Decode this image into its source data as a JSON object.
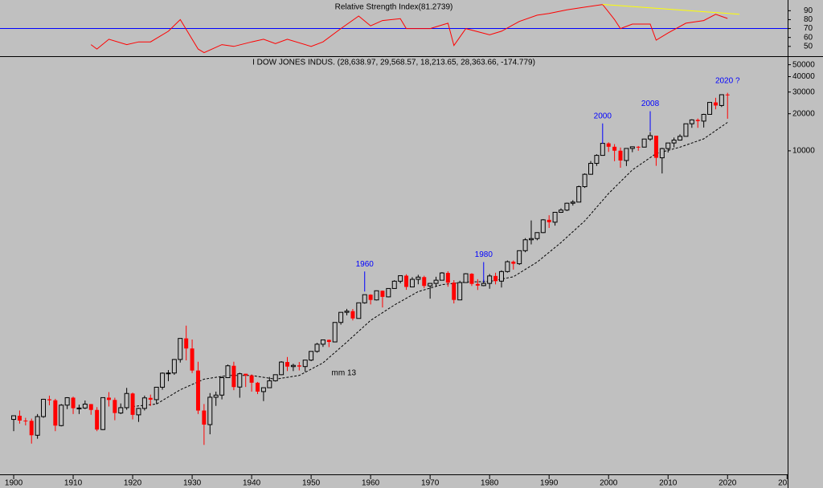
{
  "chart_data": [
    {
      "type": "line",
      "title": "Relative Strength Index(81.2739)",
      "xlim": [
        1897.7,
        2030.1
      ],
      "ylim": [
        39,
        102
      ],
      "yticks": [
        90,
        80,
        70,
        60,
        50
      ],
      "x": [
        1913,
        1914,
        1916,
        1919,
        1921,
        1923,
        1926,
        1928,
        1931,
        1932,
        1935,
        1937,
        1940,
        1942,
        1944,
        1946,
        1950,
        1952,
        1955,
        1958,
        1960,
        1962,
        1965,
        1966,
        1970,
        1973,
        1974,
        1976,
        1980,
        1982,
        1985,
        1988,
        1990,
        1993,
        1996,
        1999,
        2001,
        2002,
        2004,
        2007,
        2008,
        2010,
        2013,
        2016,
        2018,
        2020
      ],
      "series": [
        {
          "color": "#ff0000",
          "values": [
            52,
            47,
            58,
            52,
            55,
            55,
            67,
            80,
            47,
            43,
            52,
            50,
            55,
            58,
            53,
            58,
            50,
            55,
            70,
            84,
            73,
            79,
            81,
            70,
            70,
            76,
            51,
            70,
            63,
            67,
            78,
            85,
            87,
            91,
            94,
            97,
            80,
            70,
            75,
            75,
            57,
            65,
            76,
            79,
            86,
            81.3
          ]
        }
      ],
      "reference_line": {
        "value": 70,
        "color": "#0000ff"
      },
      "trendline": {
        "x": [
          1999,
          2022
        ],
        "values": [
          97,
          86
        ],
        "color": "#ffff00"
      }
    },
    {
      "type": "candlestick",
      "title": "I DOW JONES INDUS. (28,638.97, 29,568.57, 18,213.65, 28,363.66, -174.779)",
      "xlim": [
        1897.7,
        2030.1
      ],
      "ylim": [
        24,
        52000
      ],
      "log_scale": true,
      "yticks": [
        50000,
        40000,
        30000,
        20000,
        10000
      ],
      "xticks": [
        1900,
        1910,
        1920,
        1930,
        1940,
        1950,
        1960,
        1970,
        1980,
        1990,
        2000,
        2010,
        2020,
        2030
      ],
      "up_color": "#c0c0c0",
      "down_color": "#ff0000",
      "x": [
        1900,
        1901,
        1902,
        1903,
        1904,
        1905,
        1906,
        1907,
        1908,
        1909,
        1910,
        1911,
        1912,
        1913,
        1914,
        1915,
        1916,
        1917,
        1918,
        1919,
        1920,
        1921,
        1922,
        1923,
        1924,
        1925,
        1926,
        1927,
        1928,
        1929,
        1930,
        1931,
        1932,
        1933,
        1934,
        1935,
        1936,
        1937,
        1938,
        1939,
        1940,
        1941,
        1942,
        1943,
        1944,
        1945,
        1946,
        1947,
        1948,
        1949,
        1950,
        1951,
        1952,
        1953,
        1954,
        1955,
        1956,
        1957,
        1958,
        1959,
        1960,
        1961,
        1962,
        1963,
        1964,
        1965,
        1966,
        1967,
        1968,
        1969,
        1970,
        1971,
        1972,
        1973,
        1974,
        1975,
        1976,
        1977,
        1978,
        1979,
        1980,
        1981,
        1982,
        1983,
        1984,
        1985,
        1986,
        1987,
        1988,
        1989,
        1990,
        1991,
        1992,
        1993,
        1994,
        1995,
        1996,
        1997,
        1998,
        1999,
        2000,
        2001,
        2002,
        2003,
        2004,
        2005,
        2006,
        2007,
        2008,
        2009,
        2010,
        2011,
        2012,
        2013,
        2014,
        2015,
        2016,
        2017,
        2018,
        2019,
        2020
      ],
      "open": [
        66,
        70.7,
        64.6,
        64.3,
        49.1,
        69.6,
        96.2,
        94.4,
        58.8,
        86.2,
        99.1,
        81.4,
        81.7,
        87.9,
        78.8,
        54.6,
        99.2,
        95.0,
        74.4,
        82.2,
        107.2,
        71.9,
        81.1,
        98.7,
        95.5,
        120.5,
        156.7,
        157.2,
        202.4,
        300,
        248.5,
        164.6,
        77.9,
        59.9,
        99.9,
        104.0,
        144.1,
        179.9,
        120.9,
        155.0,
        150.2,
        131.1,
        111.0,
        119.4,
        135.9,
        152.3,
        192.9,
        177.2,
        181.2,
        177.3,
        200.1,
        235.4,
        269.2,
        291.9,
        280.9,
        404.4,
        488.4,
        499.5,
        435.7,
        583.7,
        679.4,
        615.9,
        731.1,
        652.1,
        762.9,
        874.1,
        969.3,
        785.7,
        905.1,
        943.8,
        800.4,
        838.9,
        890.2,
        1020,
        850.9,
        616.2,
        852.4,
        1004.7,
        831.2,
        805.0,
        838.7,
        964.0,
        875.0,
        1046.5,
        1258.6,
        1211.6,
        1546.7,
        1896,
        1938.8,
        2168.6,
        2753.2,
        2633.7,
        3168.8,
        3301.1,
        3754.1,
        3834.4,
        5117.1,
        6448.3,
        7908.3,
        9181.4,
        11497,
        10787,
        10021,
        8341.6,
        10453.9,
        10783,
        10717.5,
        12463.2,
        13264.8,
        8776.4,
        10428,
        11577.5,
        12217.6,
        13104.1,
        16576.7,
        17823.1,
        17425,
        19762.6,
        24719.2,
        23327.5,
        28638.97
      ],
      "high": [
        71,
        78,
        68,
        67,
        73,
        97,
        103,
        97,
        88,
        100,
        101,
        87,
        94,
        88,
        83,
        99.5,
        110,
        99,
        89,
        119,
        109,
        82,
        103,
        105,
        121,
        159,
        166,
        204,
        300,
        381,
        294,
        194,
        88,
        108,
        111,
        148,
        184,
        194,
        158,
        155,
        153,
        133,
        119,
        146,
        153,
        196,
        212,
        187,
        193,
        201,
        236,
        276,
        292,
        294,
        405,
        489,
        521,
        520,
        584,
        680,
        685,
        735,
        734,
        767,
        891,
        970,
        995,
        943,
        985,
        968,
        842,
        950,
        1036,
        1052,
        892,
        882,
        1015,
        1015,
        908,
        898,
        1000,
        1024,
        1071,
        1287,
        1287,
        1553,
        1955,
        2722,
        2183,
        2791,
        2999,
        3170,
        3413,
        3794,
        3978,
        5216,
        6560,
        8259,
        9374,
        11497,
        11723,
        11337,
        10635,
        10454,
        10854,
        10940,
        12510,
        14198,
        13058,
        10580,
        11585,
        12810,
        13610,
        16577,
        18053,
        18312,
        19975,
        24837,
        26951,
        28702,
        29568.57
      ],
      "low": [
        53,
        61,
        59,
        42,
        46,
        68,
        86,
        53,
        58,
        80,
        73,
        73,
        80,
        72,
        53,
        54,
        84,
        65,
        73,
        79,
        66,
        63,
        78,
        85,
        88,
        115,
        135,
        152,
        191,
        199,
        157,
        73,
        41,
        50,
        85,
        96,
        143,
        114,
        99,
        121,
        111,
        106,
        93,
        119,
        134,
        151,
        163,
        163,
        165,
        161,
        196,
        230,
        256,
        255,
        280,
        388,
        462,
        420,
        436,
        574,
        566,
        610,
        535,
        646,
        760,
        840,
        744,
        780,
        825,
        769,
        631,
        797,
        889,
        788,
        577,
        632,
        858,
        800,
        742,
        796,
        759,
        824,
        777,
        1027,
        1087,
        1185,
        1502,
        1739,
        1879,
        2145,
        2365,
        2470,
        3137,
        3242,
        3593,
        3832,
        5000,
        6391,
        7539,
        9120,
        9796,
        8235,
        7286,
        7524,
        9749,
        10012,
        10667,
        12050,
        7552,
        6547,
        9686,
        10655,
        12101,
        13104,
        15372,
        15370,
        15450,
        19732,
        21712,
        22686,
        18213.65
      ],
      "close": [
        70.7,
        64.6,
        64.3,
        49.1,
        69.6,
        96.2,
        94.4,
        58.8,
        86.2,
        99.1,
        81.4,
        81.7,
        87.9,
        78.8,
        54.6,
        99.2,
        95.0,
        74.4,
        82.2,
        107.2,
        71.9,
        81.1,
        98.7,
        95.5,
        120.5,
        156.7,
        157.2,
        202.4,
        300,
        248.5,
        164.6,
        77.9,
        59.9,
        99.9,
        104.0,
        144.1,
        179.9,
        120.9,
        155.0,
        150.2,
        131.1,
        111.0,
        119.4,
        135.9,
        152.3,
        192.9,
        177.2,
        181.2,
        177.3,
        200.1,
        235.4,
        269.2,
        291.9,
        280.9,
        404.4,
        488.4,
        499.5,
        435.7,
        583.7,
        679.4,
        615.9,
        731.1,
        652.1,
        762.9,
        874.1,
        969.3,
        785.7,
        905.1,
        943.8,
        800.4,
        838.9,
        890.2,
        1020,
        850.9,
        616.2,
        852.4,
        1004.7,
        831.2,
        805.0,
        838.7,
        964.0,
        875.0,
        1046.5,
        1258.6,
        1211.6,
        1546.7,
        1896,
        1938.8,
        2168.6,
        2753.2,
        2633.7,
        3168.8,
        3301.1,
        3754.1,
        3834.4,
        5117.1,
        6448.3,
        7908.3,
        9181.4,
        11497,
        10787,
        10021,
        8341.6,
        10453.9,
        10783,
        10717.5,
        12463.2,
        13264.8,
        8776.4,
        10428,
        11577.5,
        12217.6,
        13104.1,
        16576.7,
        17823.1,
        17425,
        19762.6,
        24719.2,
        23327.5,
        28538.4,
        28363.66
      ],
      "moving_average": {
        "color": "#000000",
        "x": [
          1920,
          1924,
          1928,
          1932,
          1936,
          1940,
          1944,
          1948,
          1952,
          1956,
          1960,
          1964,
          1968,
          1972,
          1976,
          1980,
          1984,
          1988,
          1992,
          1996,
          2000,
          2004,
          2008,
          2012,
          2016,
          2020
        ],
        "values": [
          84,
          88,
          115,
          140,
          150,
          150,
          140,
          150,
          190,
          280,
          420,
          560,
          720,
          820,
          860,
          870,
          950,
          1250,
          1800,
          2700,
          4500,
          7000,
          9500,
          10700,
          12500,
          17000
        ]
      },
      "annotations": [
        {
          "text": "1960",
          "x": 1959,
          "y": 1200,
          "line": true
        },
        {
          "text": "1980",
          "x": 1979,
          "y": 1430,
          "line": true
        },
        {
          "text": "2000",
          "x": 1999,
          "y": 19100,
          "line": true
        },
        {
          "text": "2008",
          "x": 2007,
          "y": 24000,
          "line": true
        },
        {
          "text": "2020 ?",
          "x": 2020,
          "y": 37000,
          "line": false
        },
        {
          "text": "mm 13",
          "x": 1955.5,
          "y": 157,
          "line": false
        }
      ]
    }
  ]
}
